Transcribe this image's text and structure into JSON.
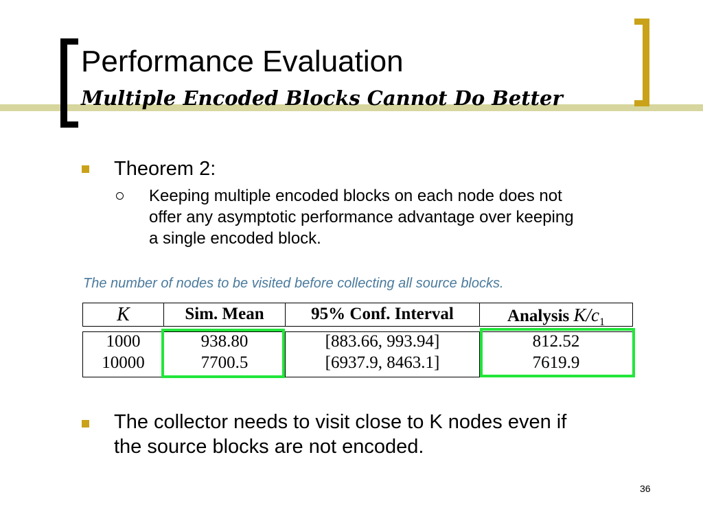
{
  "slide": {
    "title": "Performance Evaluation",
    "subtitle": "Multiple Encoded Blocks Cannot Do Better",
    "bullets": [
      {
        "text": "Theorem 2:",
        "sub": [
          "Keeping multiple encoded blocks on each node does not",
          "offer any asymptotic performance advantage over keeping",
          "a single encoded block."
        ]
      },
      {
        "text_lines": [
          "The collector needs to visit close to K nodes even if",
          "the source blocks are not encoded."
        ]
      }
    ],
    "caption": "The number of nodes to be visited before collecting all source blocks.",
    "page_number": "36"
  },
  "table": {
    "headers": {
      "k": "K",
      "sim_mean": "Sim. Mean",
      "conf": "95% Conf. Interval",
      "analysis_prefix": "Analysis",
      "analysis_formula": "K/c",
      "analysis_sub": "1"
    },
    "rows": [
      {
        "k": "1000",
        "sim_mean": "938.80",
        "conf": "[883.66, 993.94]",
        "analysis": "812.52"
      },
      {
        "k": "10000",
        "sim_mean": "7700.5",
        "conf": "[6937.9, 8463.1]",
        "analysis": "7619.9"
      }
    ]
  },
  "colors": {
    "accent_gold": "#c9a21a",
    "band": "#d6d69e",
    "caption": "#4a7a9c",
    "highlight": "#22e63a"
  }
}
